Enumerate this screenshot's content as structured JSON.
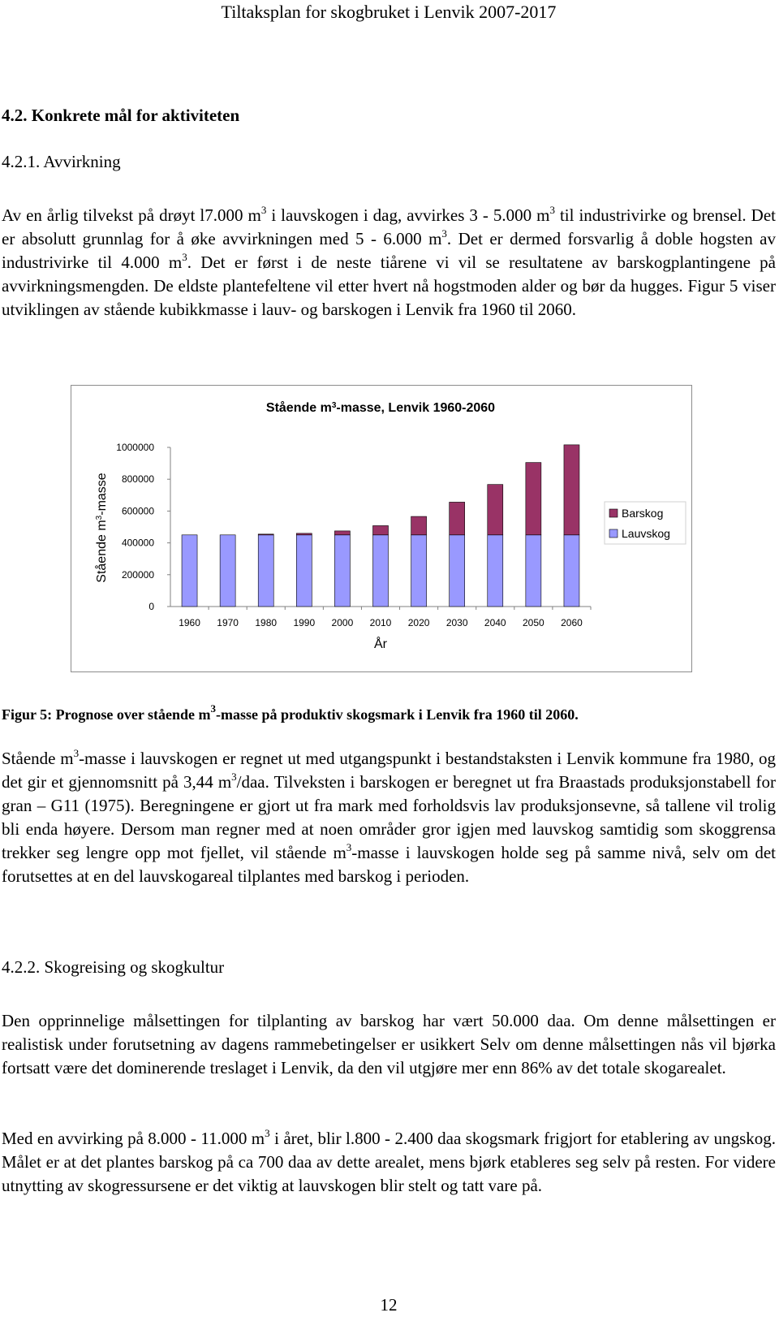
{
  "header": "Tiltaksplan for skogbruket i Lenvik 2007-2017",
  "heading_1": "4.2. Konkrete mål for aktiviteten",
  "subheading_1": "4.2.1. Avvirkning",
  "paragraph_1": [
    {
      "text": "Av en årlig tilvekst på drøyt l7.000 m"
    },
    {
      "sup": "3"
    },
    {
      "text": " i lauvskogen i dag, avvirkes 3 - 5.000 m"
    },
    {
      "sup": "3"
    },
    {
      "text": " til industrivirke og brensel. Det er absolutt grunnlag for å øke avvirkningen med 5 - 6.000 m"
    },
    {
      "sup": "3"
    },
    {
      "text": ". Det er dermed forsvarlig å doble hogsten av industrivirke til 4.000 m"
    },
    {
      "sup": "3"
    },
    {
      "text": ". Det er først i de neste tiårene vi vil se resultatene av barskogplantingene på avvirkningsmengden. De eldste plantefeltene vil etter hvert nå hogstmoden alder og bør da hugges. Figur 5 viser utviklingen av stående kubikkmasse i lauv- og barskogen i Lenvik fra 1960 til 2060."
    }
  ],
  "chart_data": {
    "type": "stacked_bar",
    "title": [
      {
        "text": "Stående m"
      },
      {
        "sup": "3"
      },
      {
        "text": "-masse, Lenvik 1960-2060"
      }
    ],
    "y_label": [
      {
        "text": "Stående m"
      },
      {
        "sup": "3"
      },
      {
        "text": "-masse"
      }
    ],
    "x_label": "År",
    "categories": [
      "1960",
      "1970",
      "1980",
      "1990",
      "2000",
      "2010",
      "2020",
      "2030",
      "2040",
      "2050",
      "2060"
    ],
    "series": [
      {
        "name": "Barskog",
        "color": "#993366",
        "values": [
          0,
          0,
          5000,
          10000,
          25000,
          58000,
          116000,
          206000,
          317000,
          455000,
          566000
        ]
      },
      {
        "name": "Lauvskog",
        "color": "#9999ff",
        "values": [
          450000,
          450000,
          450000,
          450000,
          450000,
          450000,
          450000,
          450000,
          450000,
          450000,
          450000
        ]
      }
    ],
    "ylim": [
      0,
      1000000
    ],
    "yticks": [
      0,
      200000,
      400000,
      600000,
      800000,
      1000000
    ],
    "grid": false,
    "legend": "right"
  },
  "caption": [
    {
      "text": "Figur 5: Prognose over stående m"
    },
    {
      "sup": "3"
    },
    {
      "text": "-masse på produktiv skogsmark i Lenvik fra 1960 til 2060."
    }
  ],
  "paragraph_2": [
    {
      "text": "Stående m"
    },
    {
      "sup": "3"
    },
    {
      "text": "-masse i lauvskogen er regnet ut med utgangspunkt i bestandstaksten i Lenvik kommune fra 1980, og det gir et gjennomsnitt på 3,44 m"
    },
    {
      "sup": "3"
    },
    {
      "text": "/daa. Tilveksten i barskogen er beregnet ut fra Braastads produksjonstabell for gran – G11 (1975). Beregningene er gjort ut fra mark med forholdsvis lav produksjonsevne, så tallene vil trolig bli enda høyere. Dersom man regner med at noen områder gror igjen med lauvskog samtidig som skoggrensa trekker seg lengre opp mot fjellet, vil stående m"
    },
    {
      "sup": "3"
    },
    {
      "text": "-masse i lauvskogen holde seg på samme nivå, selv om det forutsettes at en del lauvskogareal tilplantes med barskog i perioden."
    }
  ],
  "subheading_2": "4.2.2. Skogreising og skogkultur",
  "paragraph_3": [
    {
      "text": "Den opprinnelige målsettingen for tilplanting av barskog har vært 50.000 daa. Om denne målsettingen er realistisk under forutsetning av dagens rammebetingelser er usikkert  Selv om denne målsettingen nås vil bjørka fortsatt være det dominerende treslaget i Lenvik, da den vil utgjøre mer enn 86% av det totale skogarealet."
    }
  ],
  "paragraph_4": [
    {
      "text": "Med en avvirking på 8.000 - 11.000 m"
    },
    {
      "sup": "3"
    },
    {
      "text": " i året, blir l.800 - 2.400 daa skogsmark frigjort for etablering av ungskog. Målet er at det plantes barskog på ca 700 daa av dette arealet, mens bjørk etableres seg selv på resten. For videre utnytting av skogressursene er det viktig at lauvskogen blir stelt og tatt vare på."
    }
  ],
  "page_number": "12"
}
